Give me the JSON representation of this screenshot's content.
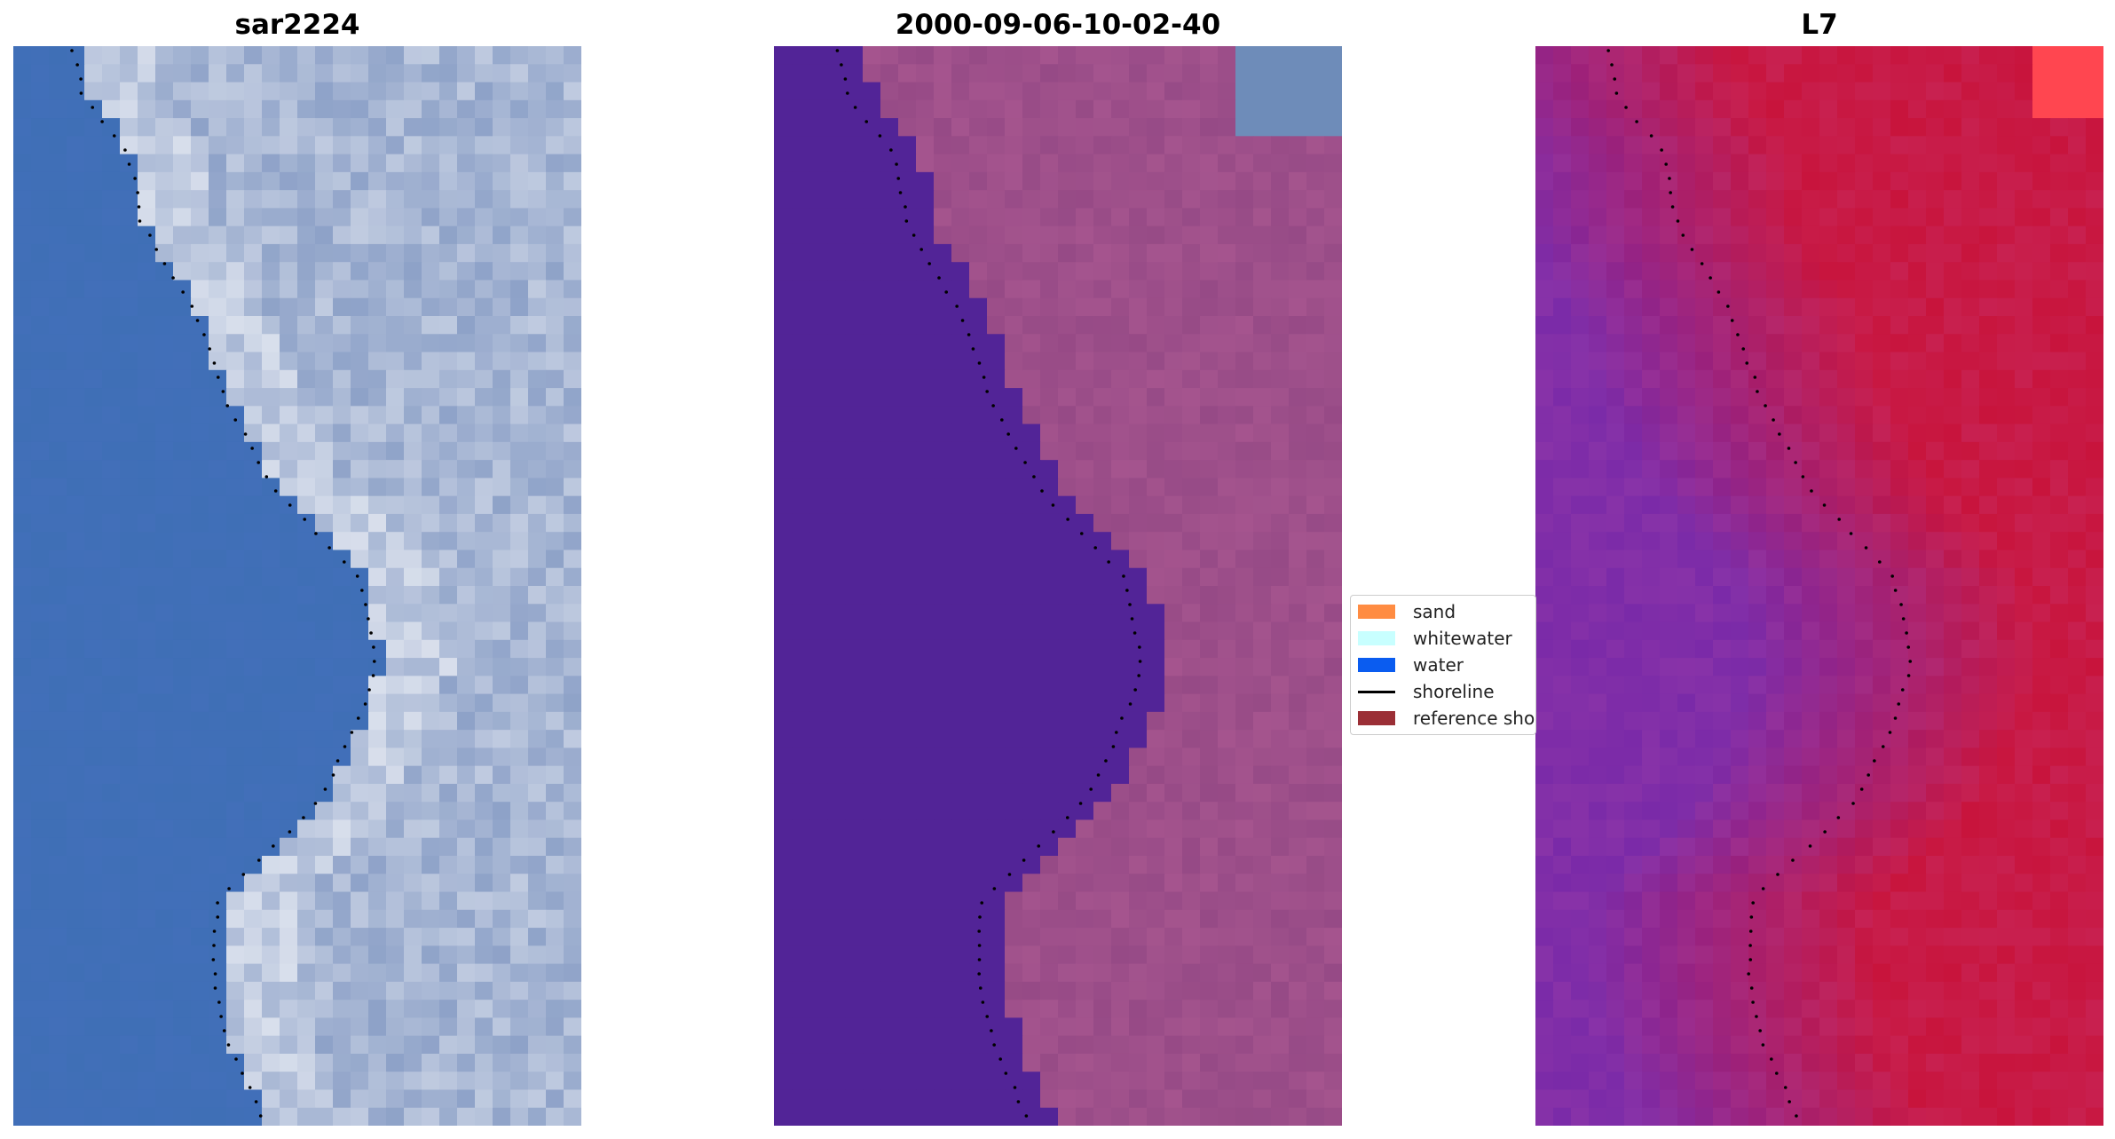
{
  "panels": [
    {
      "title": "sar2224"
    },
    {
      "title": "2000-09-06-10-02-40"
    },
    {
      "title": "L7"
    }
  ],
  "legend": {
    "items": [
      {
        "label": "sand",
        "color": "#ff8c42",
        "kind": "patch"
      },
      {
        "label": "whitewater",
        "color": "#c8ffff",
        "kind": "patch"
      },
      {
        "label": "water",
        "color": "#0a5cf0",
        "kind": "patch"
      },
      {
        "label": "shoreline",
        "color": "#000000",
        "kind": "line"
      },
      {
        "label": "reference sho",
        "color": "#9b2f36",
        "kind": "patch"
      }
    ]
  },
  "colors": {
    "rgb_water": "#3f6fb6",
    "rgb_land": "#8ea2c8",
    "classified_water": "#522497",
    "classified_land": "#964a86",
    "index_low": "#7a2aa8",
    "index_high": "#c8143c",
    "shoreline_dots": "#000000"
  }
}
